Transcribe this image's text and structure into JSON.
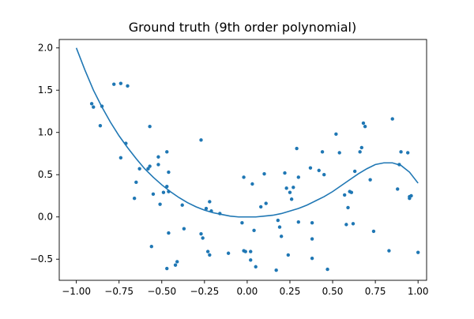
{
  "chart_data": {
    "type": "scatter",
    "title": "Ground truth (9th order polynomial)",
    "xlabel": "",
    "ylabel": "",
    "xlim": [
      -1.1,
      1.05
    ],
    "ylim": [
      -0.75,
      2.1
    ],
    "x_ticks": [
      -1.0,
      -0.75,
      -0.5,
      -0.25,
      0.0,
      0.25,
      0.5,
      0.75,
      1.0
    ],
    "x_tick_labels": [
      "−1.00",
      "−0.75",
      "−0.50",
      "−0.25",
      "0.00",
      "0.25",
      "0.50",
      "0.75",
      "1.00"
    ],
    "y_ticks": [
      -0.5,
      0.0,
      0.5,
      1.0,
      1.5,
      2.0
    ],
    "y_tick_labels": [
      "−0.5",
      "0.0",
      "0.5",
      "1.0",
      "1.5",
      "2.0"
    ],
    "grid": false,
    "legend": "none",
    "color": "#1f77b4",
    "series": [
      {
        "kind": "line",
        "x": [
          -1.0,
          -0.95,
          -0.9,
          -0.85,
          -0.8,
          -0.75,
          -0.7,
          -0.65,
          -0.6,
          -0.55,
          -0.5,
          -0.45,
          -0.4,
          -0.35,
          -0.3,
          -0.25,
          -0.2,
          -0.15,
          -0.1,
          -0.05,
          0.0,
          0.05,
          0.1,
          0.15,
          0.2,
          0.25,
          0.3,
          0.35,
          0.4,
          0.45,
          0.5,
          0.55,
          0.6,
          0.65,
          0.7,
          0.75,
          0.8,
          0.85,
          0.9,
          0.95,
          1.0
        ],
        "y": [
          2.0,
          1.74,
          1.5,
          1.3,
          1.12,
          0.96,
          0.82,
          0.69,
          0.57,
          0.47,
          0.38,
          0.3,
          0.23,
          0.17,
          0.12,
          0.08,
          0.05,
          0.03,
          0.01,
          0.0,
          0.0,
          0.0,
          0.01,
          0.02,
          0.04,
          0.07,
          0.1,
          0.14,
          0.19,
          0.24,
          0.3,
          0.37,
          0.44,
          0.51,
          0.57,
          0.62,
          0.64,
          0.64,
          0.61,
          0.53,
          0.4
        ]
      },
      {
        "kind": "scatter",
        "points": [
          [
            -0.91,
            1.34
          ],
          [
            -0.9,
            1.3
          ],
          [
            -0.86,
            1.08
          ],
          [
            -0.85,
            1.31
          ],
          [
            -0.78,
            1.57
          ],
          [
            -0.74,
            1.58
          ],
          [
            -0.7,
            1.55
          ],
          [
            -0.74,
            0.7
          ],
          [
            -0.71,
            0.87
          ],
          [
            -0.65,
            0.41
          ],
          [
            -0.66,
            0.22
          ],
          [
            -0.63,
            0.57
          ],
          [
            -0.57,
            1.07
          ],
          [
            -0.58,
            0.57
          ],
          [
            -0.57,
            0.6
          ],
          [
            -0.56,
            -0.35
          ],
          [
            -0.55,
            0.27
          ],
          [
            -0.52,
            0.62
          ],
          [
            -0.52,
            0.71
          ],
          [
            -0.51,
            0.15
          ],
          [
            -0.49,
            0.29
          ],
          [
            -0.47,
            0.77
          ],
          [
            -0.47,
            0.36
          ],
          [
            -0.46,
            0.53
          ],
          [
            -0.46,
            0.3
          ],
          [
            -0.46,
            -0.19
          ],
          [
            -0.47,
            -0.61
          ],
          [
            -0.42,
            -0.57
          ],
          [
            -0.41,
            -0.53
          ],
          [
            -0.38,
            0.14
          ],
          [
            -0.37,
            -0.14
          ],
          [
            -0.27,
            0.91
          ],
          [
            -0.27,
            -0.2
          ],
          [
            -0.26,
            -0.25
          ],
          [
            -0.24,
            0.1
          ],
          [
            -0.22,
            0.18
          ],
          [
            -0.23,
            -0.41
          ],
          [
            -0.22,
            -0.45
          ],
          [
            -0.21,
            0.07
          ],
          [
            -0.16,
            0.04
          ],
          [
            -0.11,
            -0.43
          ],
          [
            -0.03,
            -0.07
          ],
          [
            -0.02,
            0.47
          ],
          [
            -0.01,
            -0.41
          ],
          [
            -0.02,
            -0.4
          ],
          [
            0.02,
            -0.41
          ],
          [
            0.02,
            -0.51
          ],
          [
            0.03,
            0.39
          ],
          [
            0.04,
            -0.16
          ],
          [
            0.05,
            -0.59
          ],
          [
            0.08,
            0.12
          ],
          [
            0.1,
            0.51
          ],
          [
            0.11,
            0.16
          ],
          [
            0.17,
            -0.63
          ],
          [
            0.18,
            -0.04
          ],
          [
            0.19,
            -0.12
          ],
          [
            0.2,
            -0.23
          ],
          [
            0.22,
            0.52
          ],
          [
            0.23,
            0.34
          ],
          [
            0.24,
            -0.45
          ],
          [
            0.25,
            0.29
          ],
          [
            0.26,
            0.21
          ],
          [
            0.27,
            0.35
          ],
          [
            0.29,
            0.81
          ],
          [
            0.3,
            0.47
          ],
          [
            0.3,
            -0.06
          ],
          [
            0.37,
            0.58
          ],
          [
            0.38,
            -0.07
          ],
          [
            0.38,
            -0.26
          ],
          [
            0.38,
            -0.49
          ],
          [
            0.42,
            0.55
          ],
          [
            0.44,
            0.77
          ],
          [
            0.45,
            0.5
          ],
          [
            0.47,
            -0.62
          ],
          [
            0.52,
            0.98
          ],
          [
            0.54,
            0.76
          ],
          [
            0.57,
            0.26
          ],
          [
            0.58,
            -0.09
          ],
          [
            0.59,
            0.11
          ],
          [
            0.6,
            0.3
          ],
          [
            0.61,
            0.29
          ],
          [
            0.62,
            -0.08
          ],
          [
            0.63,
            0.54
          ],
          [
            0.66,
            0.77
          ],
          [
            0.67,
            0.82
          ],
          [
            0.68,
            1.11
          ],
          [
            0.69,
            1.07
          ],
          [
            0.72,
            0.44
          ],
          [
            0.74,
            -0.17
          ],
          [
            0.83,
            -0.4
          ],
          [
            0.85,
            1.16
          ],
          [
            0.88,
            0.33
          ],
          [
            0.89,
            0.62
          ],
          [
            0.9,
            0.77
          ],
          [
            0.94,
            0.76
          ],
          [
            0.95,
            0.24
          ],
          [
            0.95,
            0.22
          ],
          [
            0.96,
            0.25
          ],
          [
            1.0,
            -0.42
          ]
        ]
      }
    ]
  }
}
